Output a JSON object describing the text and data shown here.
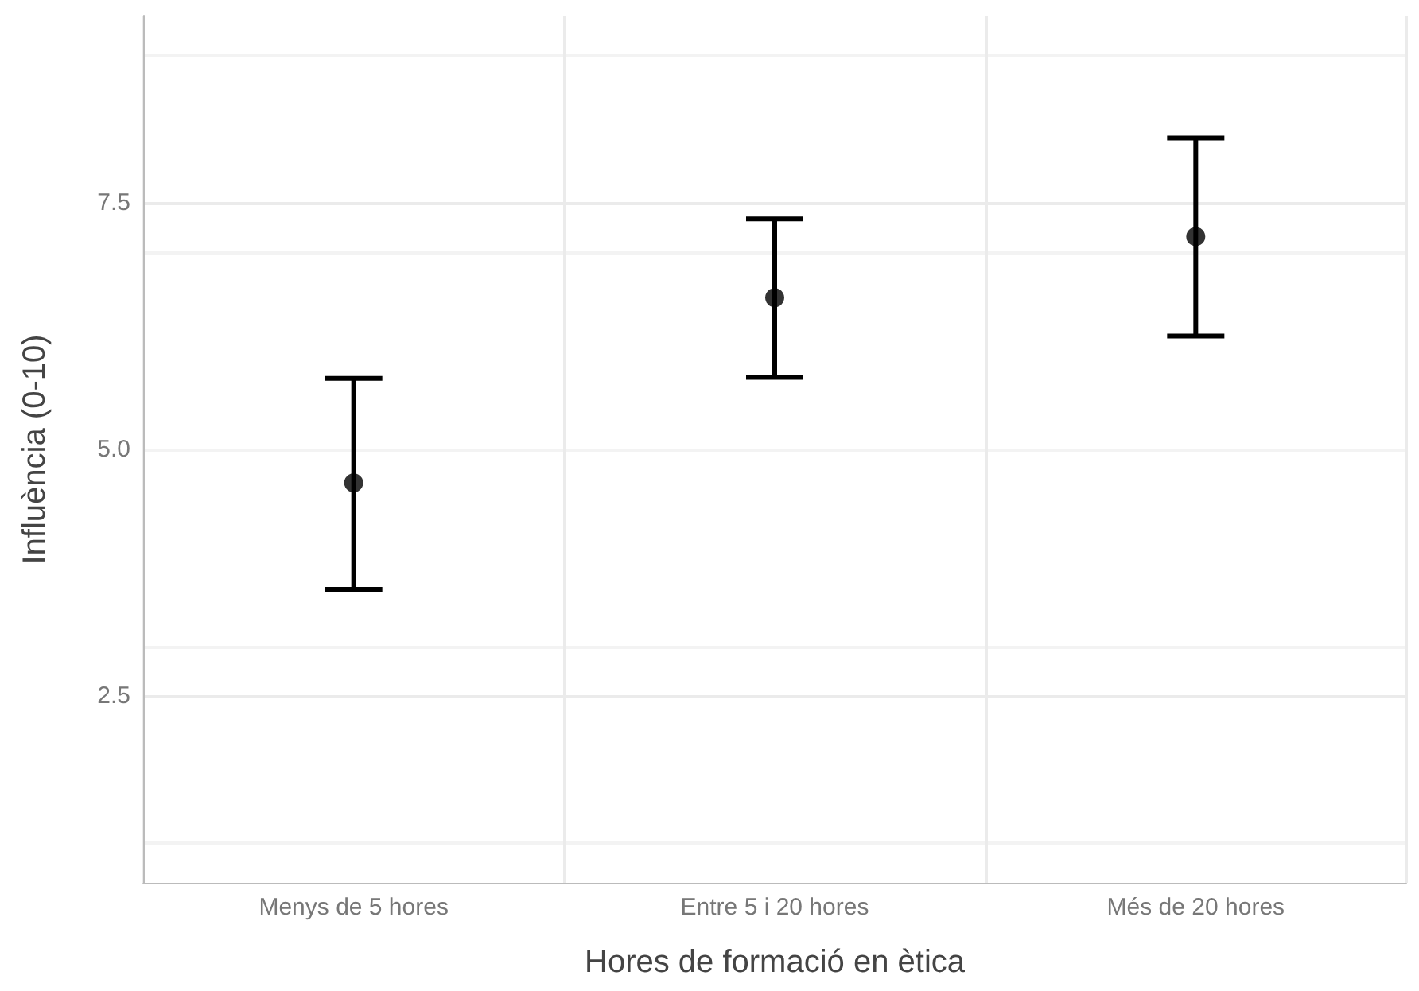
{
  "chart_data": {
    "type": "scatter",
    "xlabel": "Hores de formació en ètica",
    "ylabel": "Influència (0-10)",
    "categories": [
      "Menys de 5 hores",
      "Entre 5 i 20 hores",
      "Més de 20 hores"
    ],
    "values": [
      4.66,
      6.54,
      7.16
    ],
    "errors": [
      [
        3.58,
        5.72
      ],
      [
        5.73,
        7.34
      ],
      [
        6.15,
        8.16
      ]
    ],
    "color": "#000000",
    "marker": "circle",
    "ylim": [
      0.6,
      9.4
    ],
    "yticks": [
      {
        "value": 2.5,
        "label": "2.5"
      },
      {
        "value": 5,
        "label": "5.0"
      },
      {
        "value": 7.5,
        "label": "7.5"
      }
    ],
    "grid": true
  }
}
